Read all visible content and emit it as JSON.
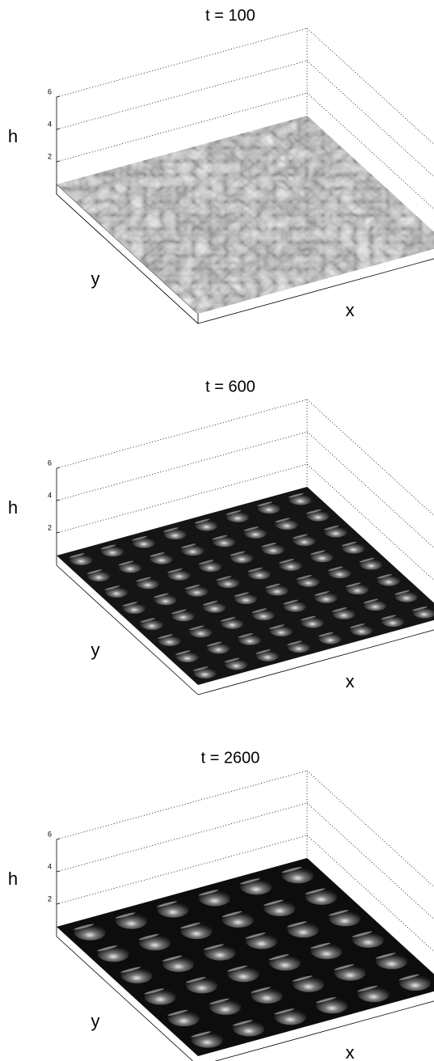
{
  "chart_data": [
    {
      "type": "surface",
      "title": "t = 100",
      "xlabel": "x",
      "ylabel": "y",
      "zlabel": "h",
      "zlim": [
        0,
        6
      ],
      "zticks": [
        2,
        4,
        6
      ]
    },
    {
      "type": "surface",
      "title": "t = 600",
      "xlabel": "x",
      "ylabel": "y",
      "zlabel": "h",
      "zlim": [
        0,
        6
      ],
      "zticks": [
        2,
        4,
        6
      ]
    },
    {
      "type": "surface",
      "title": "t = 2600",
      "xlabel": "x",
      "ylabel": "y",
      "zlabel": "h",
      "zlim": [
        0,
        6
      ],
      "zticks": [
        2,
        4,
        6
      ]
    }
  ]
}
